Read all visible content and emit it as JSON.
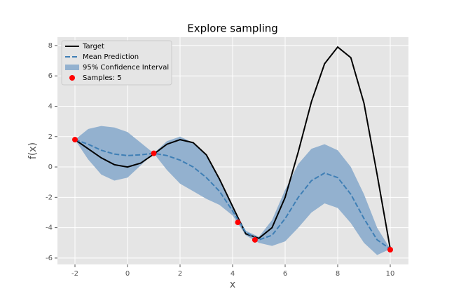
{
  "chart_data": {
    "type": "line",
    "title": "Explore sampling",
    "x_label": "x",
    "y_label": "f(x)",
    "x": [
      -2,
      -1.5,
      -1,
      -0.5,
      0,
      0.5,
      1,
      1.5,
      2,
      2.5,
      3,
      3.5,
      4,
      4.5,
      5,
      5.5,
      6,
      6.5,
      7,
      7.5,
      8,
      8.5,
      9,
      9.5,
      10
    ],
    "series": [
      {
        "name": "Target",
        "color": "#000000",
        "linestyle": "solid",
        "values": [
          1.8,
          1.2,
          0.6,
          0.15,
          0.0,
          0.25,
          0.85,
          1.5,
          1.8,
          1.6,
          0.8,
          -0.8,
          -2.6,
          -4.4,
          -4.7,
          -4.0,
          -2.0,
          1.0,
          4.3,
          6.8,
          7.9,
          7.2,
          4.2,
          -0.5,
          -5.4
        ]
      },
      {
        "name": "Mean Prediction",
        "color": "#3f7fb5",
        "linestyle": "dashed",
        "values": [
          1.8,
          1.5,
          1.1,
          0.85,
          0.75,
          0.8,
          0.9,
          0.75,
          0.45,
          0.0,
          -0.7,
          -1.6,
          -2.9,
          -4.3,
          -4.8,
          -4.5,
          -3.4,
          -2.0,
          -0.9,
          -0.4,
          -0.7,
          -1.8,
          -3.4,
          -4.8,
          -5.4
        ]
      }
    ],
    "band": {
      "name": "95% Confidence Interval",
      "color": "#93b1cf",
      "upper": [
        1.8,
        2.5,
        2.7,
        2.6,
        2.3,
        1.6,
        0.9,
        1.7,
        2.0,
        1.6,
        0.8,
        -0.8,
        -2.6,
        -4.2,
        -4.6,
        -3.5,
        -1.5,
        0.2,
        1.2,
        1.5,
        1.1,
        0.0,
        -1.8,
        -4.0,
        -5.4
      ],
      "lower": [
        1.8,
        0.5,
        -0.5,
        -0.9,
        -0.7,
        0.1,
        0.9,
        -0.2,
        -1.1,
        -1.6,
        -2.1,
        -2.5,
        -3.2,
        -4.5,
        -5.0,
        -5.2,
        -4.9,
        -4.0,
        -3.0,
        -2.4,
        -2.7,
        -3.7,
        -5.0,
        -5.8,
        -5.4
      ]
    },
    "scatter": {
      "name": "Samples: 5",
      "color": "#ff0000",
      "x": [
        -2,
        1,
        4.2,
        4.85,
        10
      ],
      "y": [
        1.8,
        0.9,
        -3.65,
        -4.8,
        -5.45
      ]
    },
    "xlim": [
      -2.667,
      10.693
    ],
    "ylim": [
      -6.42,
      8.55
    ],
    "xticks": [
      -2,
      0,
      2,
      4,
      6,
      8,
      10
    ],
    "yticks": [
      -6,
      -4,
      -2,
      0,
      2,
      4,
      6,
      8
    ],
    "grid": true,
    "legend": "upper left"
  }
}
